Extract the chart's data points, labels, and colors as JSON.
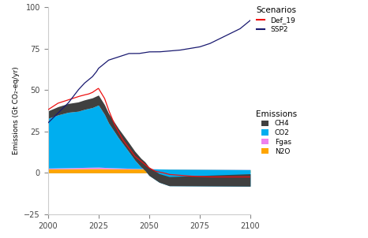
{
  "colors": {
    "ch4": "#404040",
    "co2": "#00AEEF",
    "fgas": "#EE82EE",
    "n2o": "#FFA500",
    "def19": "#EE1111",
    "ssp2": "#191970"
  },
  "xlim": [
    2000,
    2100
  ],
  "ylim": [
    -25,
    100
  ],
  "ylabel": "Emissions (Gt CO₂-eq/yr)",
  "yticks": [
    -25,
    0,
    25,
    50,
    75,
    100
  ],
  "xticks": [
    2000,
    2025,
    2050,
    2075,
    2100
  ],
  "background": "#FFFFFF",
  "legend_scenarios_title": "Scenarios",
  "legend_emissions_title": "Emissions",
  "legend_scenario_labels": [
    "Def_19",
    "SSP2"
  ],
  "legend_emission_labels": [
    "CH4",
    "CO2",
    "Fgas",
    "N2O"
  ]
}
